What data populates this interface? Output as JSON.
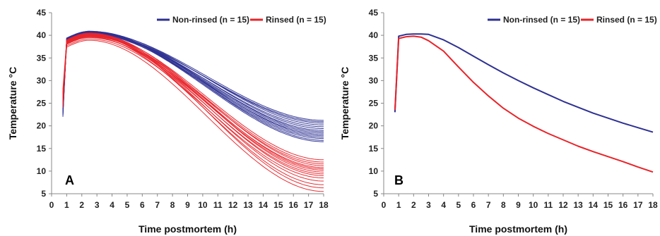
{
  "chart_data": [
    {
      "type": "line",
      "panel_label": "A",
      "xlabel": "Time postmortem (h)",
      "ylabel": "Temperature °C",
      "xlim": [
        0,
        18
      ],
      "ylim": [
        5,
        45
      ],
      "x_ticks": [
        0,
        1,
        2,
        3,
        4,
        5,
        6,
        7,
        8,
        9,
        10,
        11,
        12,
        13,
        14,
        15,
        16,
        17,
        18
      ],
      "y_ticks": [
        5,
        10,
        15,
        20,
        25,
        30,
        35,
        40,
        45
      ],
      "grid": false,
      "legend_position": "top-right",
      "legend": [
        {
          "label": "Non-rinsed (n = 15)",
          "color": "#2e3192"
        },
        {
          "label": "Rinsed (n = 15)",
          "color": "#e8242a"
        }
      ],
      "series_groups": [
        {
          "legend_label": "Non-rinsed (n = 15)",
          "color": "#2e3192",
          "start_temps": [
            22.5,
            23.0,
            24.0,
            22.0,
            25.0,
            23.5,
            22.8,
            24.5,
            23.2,
            22.3,
            24.8,
            23.8,
            22.6,
            25.2,
            23.4
          ],
          "peak_temps": [
            40.8,
            40.6,
            40.9,
            40.4,
            40.7,
            40.5,
            40.8,
            40.6,
            40.3,
            40.9,
            40.7,
            40.5,
            40.8,
            40.6,
            40.4
          ],
          "final_temps_18h": [
            21.2,
            20.6,
            20.2,
            19.8,
            19.4,
            19.0,
            18.7,
            18.4,
            18.1,
            17.8,
            17.5,
            17.2,
            16.8,
            16.5,
            20.9
          ]
        },
        {
          "legend_label": "Rinsed (n = 15)",
          "color": "#e8242a",
          "start_temps": [
            24.0,
            26.0,
            25.0,
            28.0,
            27.0,
            25.5,
            26.5,
            24.5,
            27.5,
            25.8,
            26.2,
            24.8,
            27.2,
            25.2,
            26.8
          ],
          "peak_temps": [
            40.3,
            40.0,
            39.8,
            40.5,
            39.5,
            40.2,
            39.9,
            40.4,
            39.6,
            40.1,
            39.2,
            40.0,
            39.7,
            40.3,
            38.9
          ],
          "final_temps_18h": [
            12.5,
            12.0,
            11.6,
            11.2,
            10.8,
            10.5,
            10.2,
            9.8,
            9.4,
            9.0,
            8.5,
            7.8,
            7.0,
            6.3,
            5.5
          ]
        }
      ]
    },
    {
      "type": "line",
      "panel_label": "B",
      "xlabel": "Time postmortem (h)",
      "ylabel": "Temperature °C",
      "xlim": [
        0,
        18
      ],
      "ylim": [
        5,
        45
      ],
      "x_ticks": [
        0,
        1,
        2,
        3,
        4,
        5,
        6,
        7,
        8,
        9,
        10,
        11,
        12,
        13,
        14,
        15,
        16,
        17,
        18
      ],
      "y_ticks": [
        5,
        10,
        15,
        20,
        25,
        30,
        35,
        40,
        45
      ],
      "grid": false,
      "legend_position": "top-right",
      "series": [
        {
          "name": "Non-rinsed (n = 15)",
          "color": "#2e3192",
          "x": [
            0.75,
            1,
            1.5,
            2,
            2.5,
            3,
            4,
            5,
            6,
            7,
            8,
            9,
            10,
            11,
            12,
            13,
            14,
            15,
            16,
            17,
            18
          ],
          "y": [
            23.0,
            39.8,
            40.2,
            40.3,
            40.3,
            40.2,
            39.0,
            37.3,
            35.4,
            33.5,
            31.7,
            30.0,
            28.4,
            26.9,
            25.4,
            24.1,
            22.8,
            21.7,
            20.6,
            19.6,
            18.6
          ]
        },
        {
          "name": "Rinsed (n = 15)",
          "color": "#e8242a",
          "x": [
            0.75,
            1,
            1.5,
            2,
            2.5,
            3,
            4,
            5,
            6,
            7,
            8,
            9,
            10,
            11,
            12,
            13,
            14,
            15,
            16,
            17,
            18
          ],
          "y": [
            23.5,
            39.3,
            39.7,
            39.8,
            39.6,
            38.8,
            36.5,
            33.0,
            29.6,
            26.6,
            23.9,
            21.7,
            19.9,
            18.3,
            16.9,
            15.5,
            14.3,
            13.2,
            12.1,
            10.9,
            9.8
          ]
        }
      ]
    }
  ]
}
